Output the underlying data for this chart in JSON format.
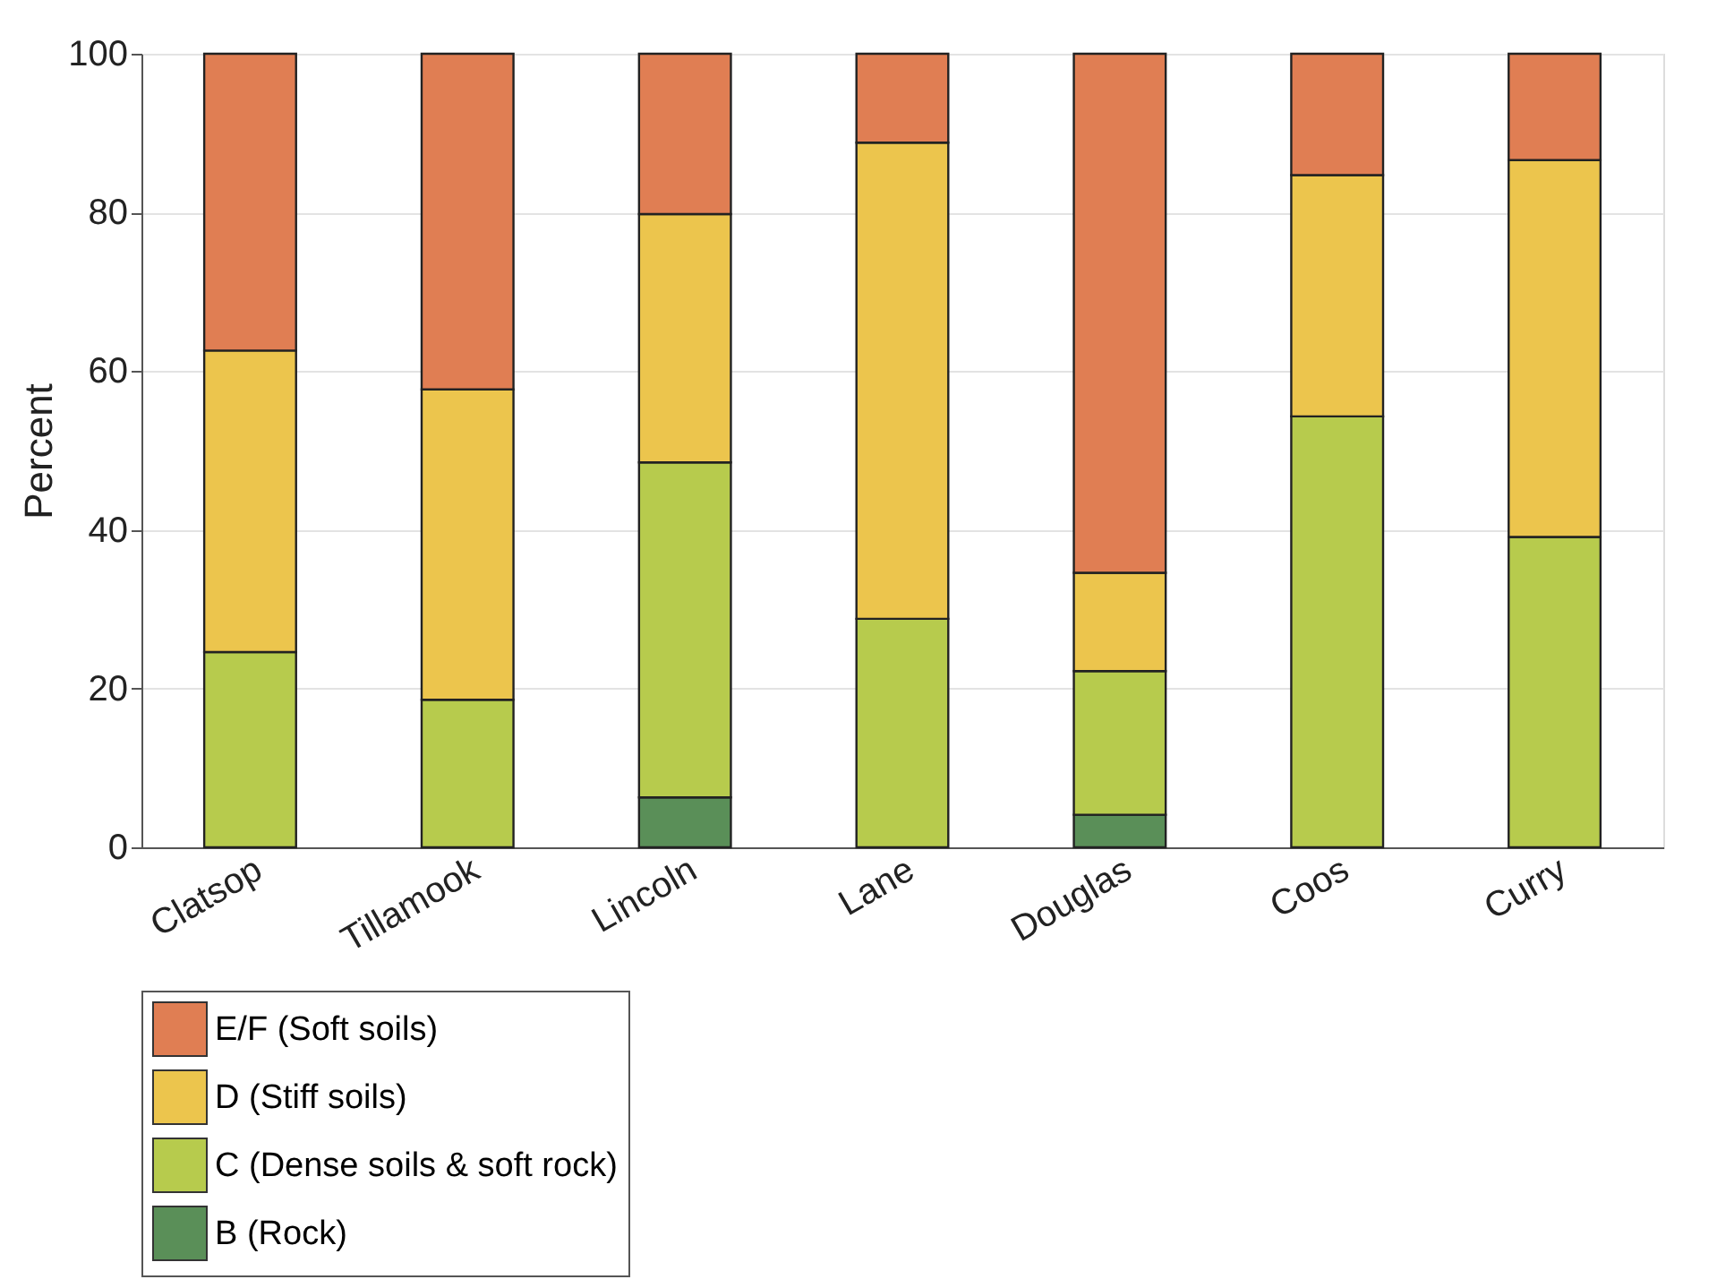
{
  "chart_data": {
    "type": "bar",
    "stacked": true,
    "ylabel": "Percent",
    "categories": [
      "Clatsop",
      "Tillamook",
      "Lincoln",
      "Lane",
      "Douglas",
      "Coos",
      "Curry"
    ],
    "series": [
      {
        "name": "B (Rock)",
        "color": "#5a8f58",
        "values": [
          null,
          null,
          6.3,
          null,
          4.1,
          null,
          null
        ]
      },
      {
        "name": "C (Dense soils & soft rock)",
        "color": "#b7cb4d",
        "values": [
          24.6,
          18.6,
          42.2,
          28.8,
          18.1,
          54.3,
          39.1
        ]
      },
      {
        "name": "D (Stiff soils)",
        "color": "#ecc54d",
        "values": [
          38.0,
          39.1,
          31.3,
          60.0,
          12.4,
          30.4,
          47.5
        ]
      },
      {
        "name": "E/F (Soft soils)",
        "color": "#e07e53",
        "values": [
          37.4,
          42.3,
          20.2,
          11.2,
          65.4,
          15.3,
          13.4
        ]
      }
    ],
    "ylim": [
      0,
      100
    ],
    "yticks": [
      0,
      20,
      40,
      60,
      80,
      100
    ],
    "grid": "y",
    "legend": "bottom"
  }
}
